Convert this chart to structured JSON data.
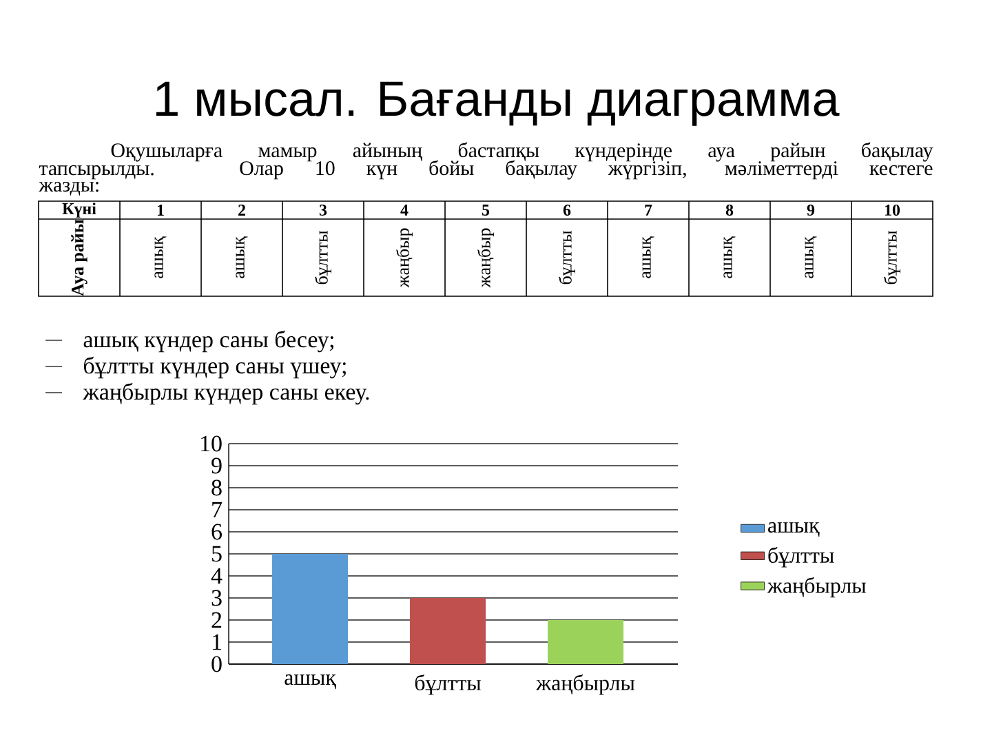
{
  "chart_data": {
    "type": "bar",
    "title": "1 мысал. Бағанды диаграмма",
    "annotations": [
      "Оқушыларға мамыр айының бастапқы күндерінде ауа райын бақылау",
      "тапсырылды. Олар 10 күн бойы бақылау жүргізіп, мәліметтерді кестеге",
      "жазды:",
      "Күні",
      "1",
      "2",
      "3",
      "4",
      "5",
      "6",
      "7",
      "8",
      "9",
      "10",
      "Ауа райы",
      "ашық",
      "ашық",
      "бұлтты",
      "жаңбыр",
      "жаңбыр",
      "бұлтты",
      "ашық",
      "ашық",
      "ашық",
      "бұлтты",
      "ашық күндер саны бесеу;",
      "бұлтты күндер саны үшеу;",
      "жаңбырлы күндер саны екеу."
    ],
    "categories": [
      "ашық",
      "бұлтты",
      "жаңбырлы"
    ],
    "series": [
      {
        "name": "ашық",
        "color": "#5b9bd5",
        "values": [
          5,
          null,
          null
        ]
      },
      {
        "name": "бұлтты",
        "color": "#c0504d",
        "values": [
          null,
          3,
          null
        ]
      },
      {
        "name": "жаңбырлы",
        "color": "#9bd35a",
        "values": [
          null,
          null,
          2
        ]
      }
    ],
    "ylim": [
      0,
      10
    ],
    "yticks": [
      0,
      1,
      2,
      3,
      4,
      5,
      6,
      7,
      8,
      9,
      10
    ],
    "grid": "y",
    "legend": "right"
  }
}
